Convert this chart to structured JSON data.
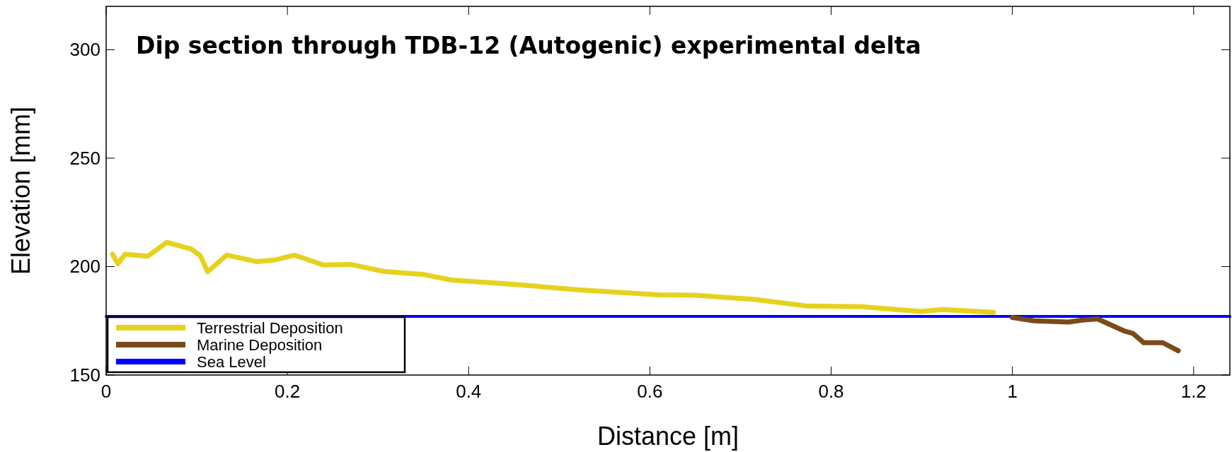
{
  "chart_data": {
    "type": "line",
    "title": "Dip section through TDB-12 (Autogenic) experimental delta",
    "xlabel": "Distance [m]",
    "ylabel": "Elevation [mm]",
    "xlim": [
      0,
      1.24
    ],
    "ylim": [
      150,
      320
    ],
    "xticks": [
      0,
      0.2,
      0.4,
      0.6,
      0.8,
      1,
      1.2
    ],
    "yticks": [
      150,
      200,
      250,
      300
    ],
    "grid": false,
    "legend": "bottom left",
    "series": [
      {
        "name": "Terrestrial Deposition",
        "color": "#e6d21e",
        "x": [
          0.007,
          0.013,
          0.021,
          0.046,
          0.067,
          0.094,
          0.104,
          0.112,
          0.133,
          0.166,
          0.187,
          0.208,
          0.24,
          0.27,
          0.306,
          0.351,
          0.381,
          0.459,
          0.52,
          0.61,
          0.649,
          0.714,
          0.774,
          0.834,
          0.899,
          0.923,
          0.979
        ],
        "values": [
          205.7,
          201.3,
          205.7,
          204.8,
          211.2,
          208.1,
          205,
          197.6,
          205.3,
          202.3,
          203.1,
          205.3,
          200.7,
          201,
          197.8,
          196.3,
          193.8,
          191.5,
          189.3,
          187,
          186.8,
          184.9,
          181.8,
          181.5,
          179.3,
          180.2,
          178.9
        ]
      },
      {
        "name": "Marine Deposition",
        "color": "#7a4a1a",
        "x": [
          1.0,
          1.024,
          1.062,
          1.077,
          1.094,
          1.124,
          1.133,
          1.145,
          1.166,
          1.183
        ],
        "values": [
          176.5,
          175,
          174.4,
          175.3,
          175.9,
          170.2,
          169.2,
          164.9,
          164.9,
          161.2
        ]
      },
      {
        "name": "Sea Level",
        "color": "#0000ff",
        "x": [
          0,
          1.24
        ],
        "values": [
          177,
          177
        ]
      }
    ]
  }
}
